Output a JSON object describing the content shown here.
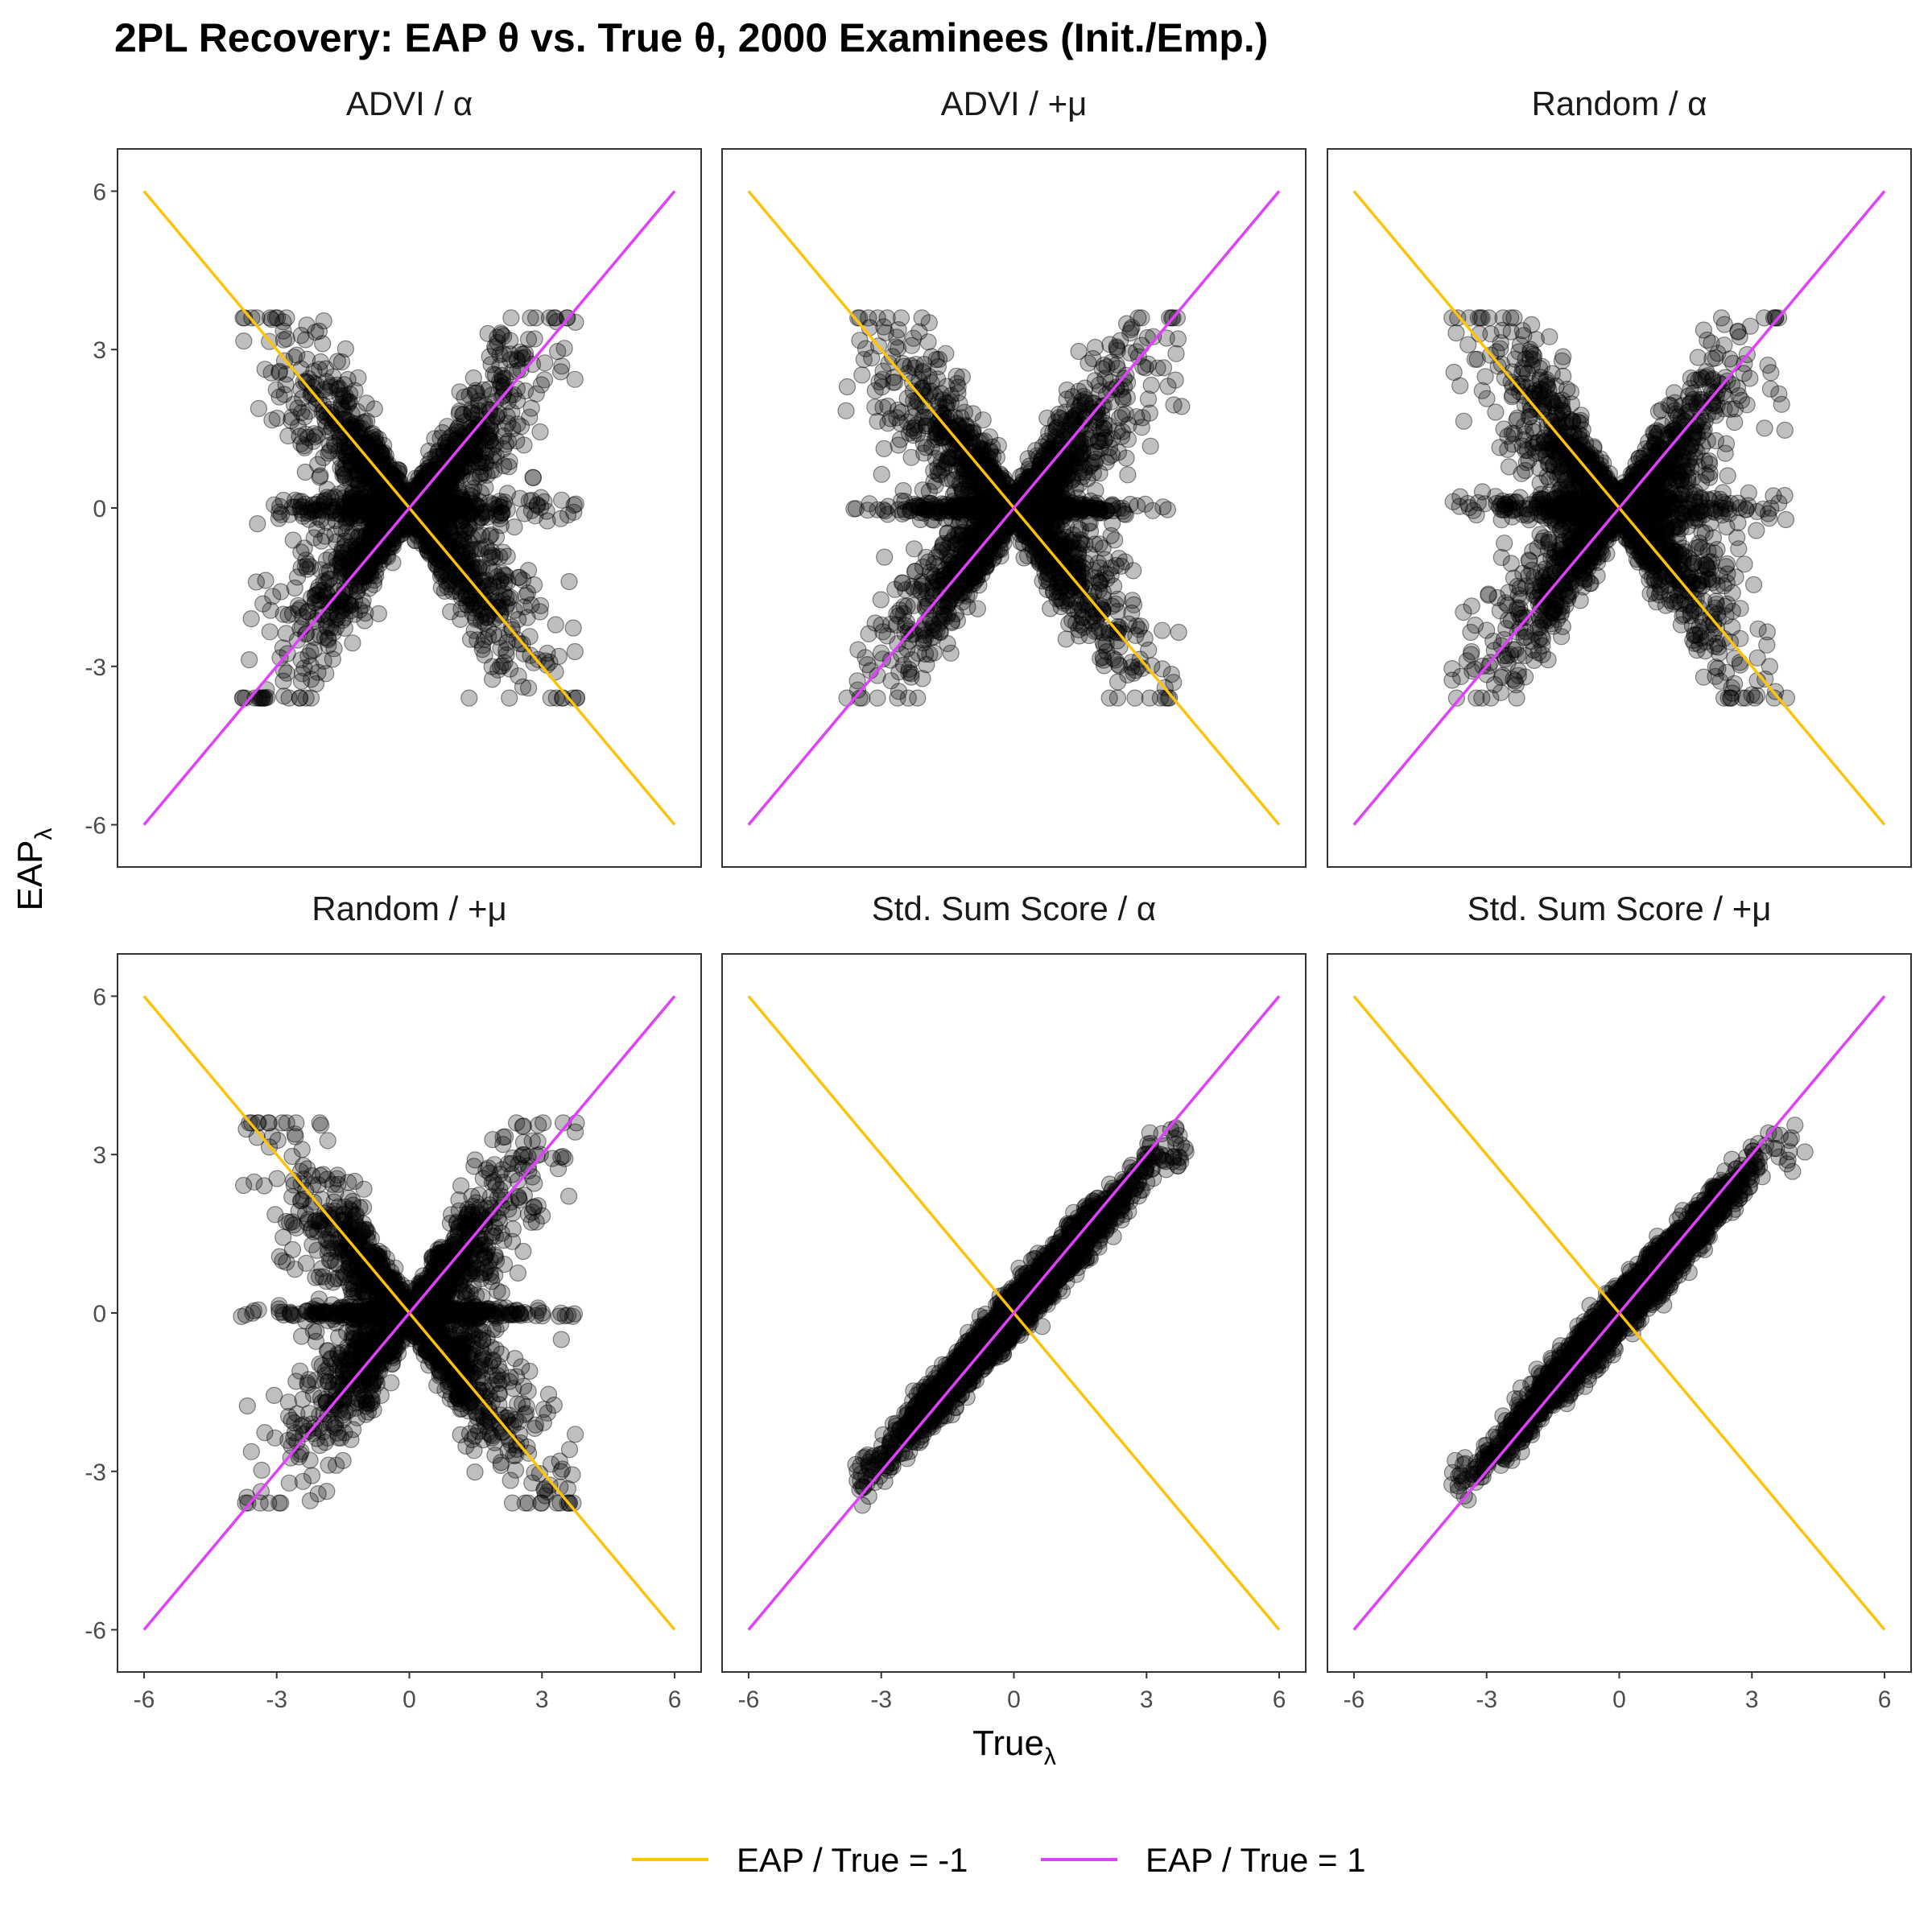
{
  "title": "2PL Recovery: EAP θ vs. True θ, 2000 Examinees (Init./Emp.)",
  "y_axis_label": {
    "base": "EAP",
    "sub": "λ"
  },
  "x_axis_label": {
    "base": "True",
    "sub": "λ"
  },
  "colors": {
    "line_neg": "#FFC20A",
    "line_pos": "#E040FB",
    "points": "#000000",
    "panel_border": "#333333",
    "axis_text": "#4d4d4d"
  },
  "legend": {
    "placement": "bottom",
    "items": [
      {
        "label": "EAP / True = -1",
        "color": "#FFC20A",
        "slope": -1
      },
      {
        "label": "EAP / True = 1",
        "color": "#E040FB",
        "slope": 1
      }
    ]
  },
  "chart_data": {
    "type": "scatter",
    "facets": "2x3",
    "xlim": [
      -6.6,
      6.6
    ],
    "ylim": [
      -6.8,
      6.8
    ],
    "x_ticks": [
      -6,
      -3,
      0,
      3,
      6
    ],
    "y_ticks": [
      -6,
      -3,
      0,
      3,
      6
    ],
    "x_tick_labels": [
      "-6",
      "-3",
      "0",
      "3",
      "6"
    ],
    "y_tick_labels": [
      "-6",
      "-3",
      "0",
      "3",
      "6"
    ],
    "reference_lines": [
      {
        "slope": -1,
        "x_range": [
          -6,
          6
        ],
        "color": "#FFC20A"
      },
      {
        "slope": 1,
        "x_range": [
          -6,
          6
        ],
        "color": "#E040FB"
      }
    ],
    "point_alpha": 0.25,
    "panels": [
      {
        "label": "ADVI / α",
        "pattern": "x",
        "strength": 0.55,
        "spread": 0.9,
        "band": 0.28,
        "x_range": [
          -3.8,
          3.8
        ]
      },
      {
        "label": "ADVI / +μ",
        "pattern": "x",
        "strength": 0.5,
        "spread": 0.9,
        "band": 0.14,
        "x_range": [
          -3.8,
          3.8
        ]
      },
      {
        "label": "Random / α",
        "pattern": "x",
        "strength": 0.55,
        "spread": 0.9,
        "band": 0.28,
        "x_range": [
          -3.8,
          3.8
        ]
      },
      {
        "label": "Random / +μ",
        "pattern": "x",
        "strength": 0.5,
        "spread": 0.9,
        "band": 0.12,
        "x_range": [
          -3.8,
          3.8
        ]
      },
      {
        "label": "Std. Sum Score / α",
        "pattern": "identity",
        "strength": 1,
        "spread": 0.22,
        "band": 0,
        "x_range": [
          -3.6,
          4.0
        ]
      },
      {
        "label": "Std. Sum Score / +μ",
        "pattern": "identity",
        "strength": 1,
        "spread": 0.22,
        "band": 0,
        "x_range": [
          -3.8,
          4.2
        ]
      }
    ]
  }
}
